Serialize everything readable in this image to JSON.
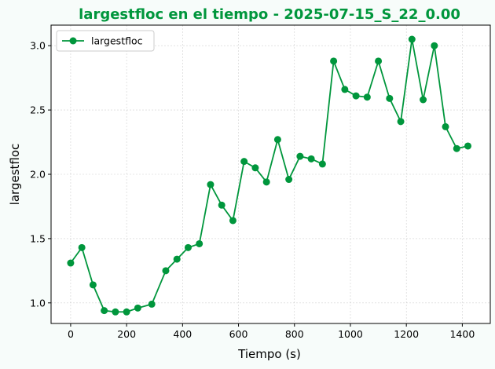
{
  "chart_data": {
    "type": "line",
    "title": "largestfloc en el tiempo - 2025-07-15_S_22_0.00",
    "xlabel": "Tiempo (s)",
    "ylabel": "largestfloc",
    "xlim": [
      -70,
      1500
    ],
    "ylim": [
      0.84,
      3.16
    ],
    "xticks": [
      0,
      200,
      400,
      600,
      800,
      1000,
      1200,
      1400
    ],
    "yticks": [
      1.0,
      1.5,
      2.0,
      2.5,
      3.0
    ],
    "ytick_labels": [
      "1.0",
      "1.5",
      "2.0",
      "2.5",
      "3.0"
    ],
    "grid": true,
    "legend_position": "top-left",
    "colors": {
      "series": "#00963c",
      "title": "#00963c"
    },
    "series": [
      {
        "name": "largestfloc",
        "x": [
          0,
          40,
          80,
          120,
          160,
          200,
          240,
          290,
          340,
          380,
          420,
          460,
          500,
          540,
          580,
          620,
          660,
          700,
          740,
          780,
          820,
          860,
          900,
          940,
          980,
          1020,
          1060,
          1100,
          1140,
          1180,
          1220,
          1260,
          1300,
          1340,
          1380,
          1420
        ],
        "y": [
          1.31,
          1.43,
          1.14,
          0.94,
          0.93,
          0.93,
          0.96,
          0.99,
          1.25,
          1.34,
          1.43,
          1.46,
          1.92,
          1.76,
          1.64,
          2.1,
          2.05,
          1.94,
          2.27,
          1.96,
          2.14,
          2.12,
          2.08,
          2.88,
          2.66,
          2.61,
          2.6,
          2.88,
          2.59,
          2.41,
          3.05,
          2.58,
          3.0,
          2.37,
          2.2,
          2.22
        ]
      }
    ]
  }
}
